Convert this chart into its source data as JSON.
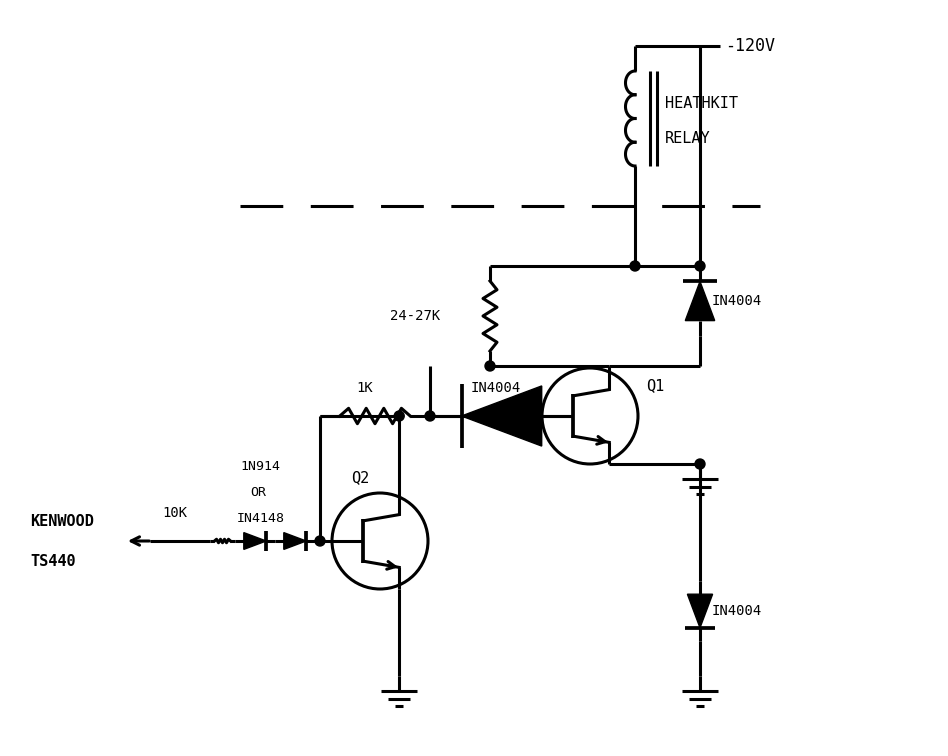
{
  "bg": "#ffffff",
  "fg": "#000000",
  "lw": 2.2,
  "fig_w": 9.48,
  "fig_h": 7.56,
  "xlim": [
    0,
    948
  ],
  "ylim": [
    0,
    756
  ]
}
